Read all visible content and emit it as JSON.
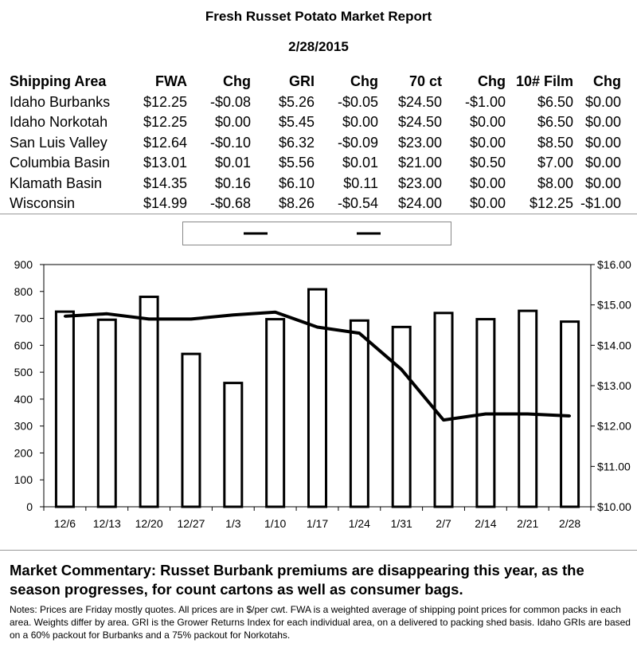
{
  "report": {
    "title": "Fresh Russet Potato Market Report",
    "date": "2/28/2015"
  },
  "table": {
    "headers": [
      "Shipping Area",
      "FWA",
      "Chg",
      "GRI",
      "Chg",
      "70 ct",
      "Chg",
      "10# Film",
      "Chg"
    ],
    "rows": [
      [
        "Idaho Burbanks",
        "$12.25",
        "-$0.08",
        "$5.26",
        "-$0.05",
        "$24.50",
        "-$1.00",
        "$6.50",
        "$0.00"
      ],
      [
        "Idaho Norkotah",
        "$12.25",
        "$0.00",
        "$5.45",
        "$0.00",
        "$24.50",
        "$0.00",
        "$6.50",
        "$0.00"
      ],
      [
        "San Luis Valley",
        "$12.64",
        "-$0.10",
        "$6.32",
        "-$0.09",
        "$23.00",
        "$0.00",
        "$8.50",
        "$0.00"
      ],
      [
        "Columbia Basin",
        "$13.01",
        "$0.01",
        "$5.56",
        "$0.01",
        "$21.00",
        "$0.50",
        "$7.00",
        "$0.00"
      ],
      [
        "Klamath Basin",
        "$14.35",
        "$0.16",
        "$6.10",
        "$0.11",
        "$23.00",
        "$0.00",
        "$8.00",
        "$0.00"
      ],
      [
        "Wisconsin",
        "$14.99",
        "-$0.68",
        "$8.26",
        "-$0.54",
        "$24.00",
        "$0.00",
        "$12.25",
        "-$1.00"
      ]
    ]
  },
  "chart_data": {
    "type": "bar",
    "categories": [
      "12/6",
      "12/13",
      "12/20",
      "12/27",
      "1/3",
      "1/10",
      "1/17",
      "1/24",
      "1/31",
      "2/7",
      "2/14",
      "2/21",
      "2/28"
    ],
    "series": [
      {
        "type": "bar",
        "axis": "left",
        "values": [
          725,
          695,
          780,
          568,
          460,
          697,
          808,
          692,
          668,
          720,
          697,
          728,
          688
        ]
      },
      {
        "type": "line",
        "axis": "right",
        "values": [
          14.72,
          14.78,
          14.65,
          14.65,
          14.75,
          14.82,
          14.45,
          14.3,
          13.4,
          12.15,
          12.3,
          12.3,
          12.25
        ]
      }
    ],
    "ylim_left": [
      0,
      900
    ],
    "yticks_left": [
      "0",
      "100",
      "200",
      "300",
      "400",
      "500",
      "600",
      "700",
      "800",
      "900"
    ],
    "ylim_right": [
      10,
      16
    ],
    "yticks_right": [
      "$10.00",
      "$11.00",
      "$12.00",
      "$13.00",
      "$14.00",
      "$15.00",
      "$16.00"
    ],
    "legend_position": "top-center",
    "grid": false,
    "colors": {
      "bar_fill": "#ffffff",
      "bar_stroke": "#000000",
      "line": "#000000"
    }
  },
  "commentary": "Market Commentary: Russet Burbank premiums are disappearing this year, as the season progresses, for count cartons as well as consumer bags.",
  "notes": "Notes: Prices are Friday mostly quotes. All prices are in $/per cwt. FWA is a weighted average of shipping point prices for  common packs in each area. Weights differ by area. GRI is the Grower Returns Index for each individual area, on a delivered to packing shed basis. Idaho GRIs are based on a 60% packout for Burbanks and a 75% packout for Norkotahs."
}
